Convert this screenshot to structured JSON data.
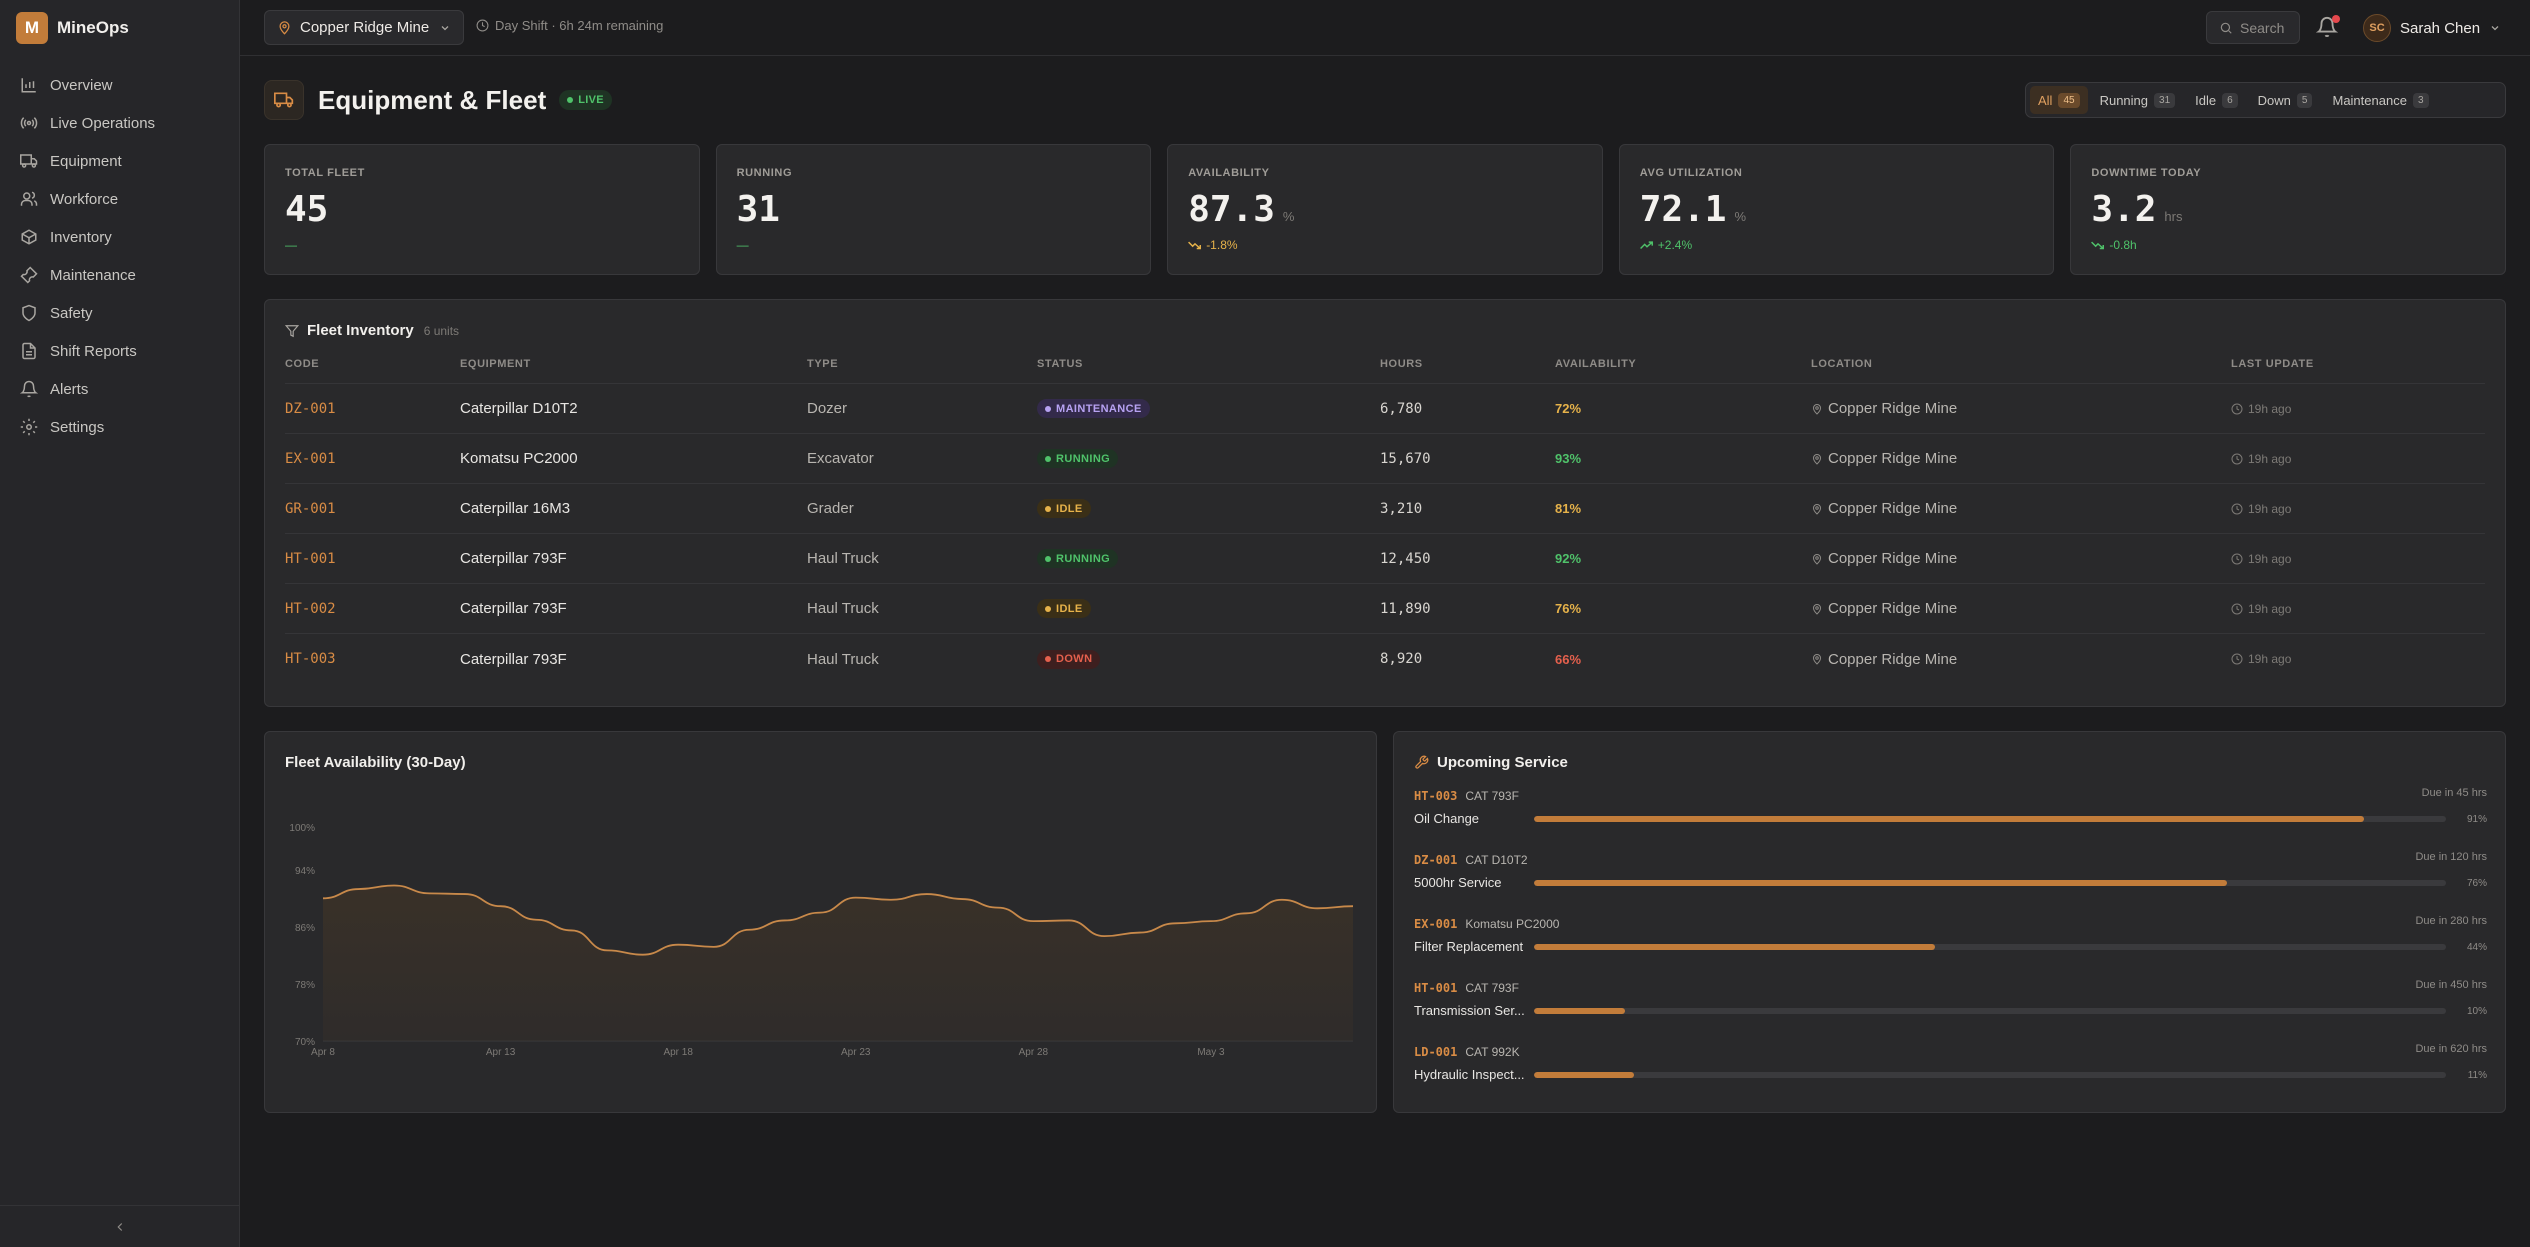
{
  "brand": {
    "logo": "M",
    "name": "MineOps"
  },
  "nav": [
    {
      "label": "Overview",
      "icon": "bar-chart-icon"
    },
    {
      "label": "Live Operations",
      "icon": "radio-icon"
    },
    {
      "label": "Equipment",
      "icon": "truck-icon"
    },
    {
      "label": "Workforce",
      "icon": "users-icon"
    },
    {
      "label": "Inventory",
      "icon": "box-icon"
    },
    {
      "label": "Maintenance",
      "icon": "wrench-icon"
    },
    {
      "label": "Safety",
      "icon": "shield-icon"
    },
    {
      "label": "Shift Reports",
      "icon": "file-text-icon"
    },
    {
      "label": "Alerts",
      "icon": "bell-icon"
    },
    {
      "label": "Settings",
      "icon": "gear-icon"
    }
  ],
  "topbar": {
    "site": "Copper Ridge Mine",
    "shift": "Day Shift · 6h 24m remaining",
    "search_placeholder": "Search",
    "user_initials": "SC",
    "user_name": "Sarah Chen"
  },
  "header": {
    "title": "Equipment & Fleet",
    "live": "LIVE"
  },
  "filters": [
    {
      "label": "All",
      "count": "45",
      "active": true
    },
    {
      "label": "Running",
      "count": "31"
    },
    {
      "label": "Idle",
      "count": "6"
    },
    {
      "label": "Down",
      "count": "5"
    },
    {
      "label": "Maintenance",
      "count": "3"
    }
  ],
  "kpis": [
    {
      "label": "TOTAL FLEET",
      "value": "45",
      "unit": "",
      "delta": "—",
      "tone": "neutral"
    },
    {
      "label": "RUNNING",
      "value": "31",
      "unit": "",
      "delta": "—",
      "tone": "neutral"
    },
    {
      "label": "AVAILABILITY",
      "value": "87.3",
      "unit": "%",
      "delta": "-1.8%",
      "tone": "warn"
    },
    {
      "label": "AVG UTILIZATION",
      "value": "72.1",
      "unit": "%",
      "delta": "+2.4%",
      "tone": "good"
    },
    {
      "label": "DOWNTIME TODAY",
      "value": "3.2",
      "unit": "hrs",
      "delta": "-0.8h",
      "tone": "good"
    }
  ],
  "inventory": {
    "title": "Fleet Inventory",
    "count": "6 units",
    "columns": [
      "CODE",
      "EQUIPMENT",
      "TYPE",
      "STATUS",
      "HOURS",
      "AVAILABILITY",
      "LOCATION",
      "LAST UPDATE"
    ],
    "rows": [
      {
        "code": "DZ-001",
        "equipment": "Caterpillar D10T2",
        "type": "Dozer",
        "status": "MAINTENANCE",
        "status_key": "maint",
        "hours": "6,780",
        "availability": "72%",
        "avail_tone": "warn",
        "location": "Copper Ridge Mine",
        "updated": "19h ago"
      },
      {
        "code": "EX-001",
        "equipment": "Komatsu PC2000",
        "type": "Excavator",
        "status": "RUNNING",
        "status_key": "run",
        "hours": "15,670",
        "availability": "93%",
        "avail_tone": "good",
        "location": "Copper Ridge Mine",
        "updated": "19h ago"
      },
      {
        "code": "GR-001",
        "equipment": "Caterpillar 16M3",
        "type": "Grader",
        "status": "IDLE",
        "status_key": "idle",
        "hours": "3,210",
        "availability": "81%",
        "avail_tone": "warn",
        "location": "Copper Ridge Mine",
        "updated": "19h ago"
      },
      {
        "code": "HT-001",
        "equipment": "Caterpillar 793F",
        "type": "Haul Truck",
        "status": "RUNNING",
        "status_key": "run",
        "hours": "12,450",
        "availability": "92%",
        "avail_tone": "good",
        "location": "Copper Ridge Mine",
        "updated": "19h ago"
      },
      {
        "code": "HT-002",
        "equipment": "Caterpillar 793F",
        "type": "Haul Truck",
        "status": "IDLE",
        "status_key": "idle",
        "hours": "11,890",
        "availability": "76%",
        "avail_tone": "warn",
        "location": "Copper Ridge Mine",
        "updated": "19h ago"
      },
      {
        "code": "HT-003",
        "equipment": "Caterpillar 793F",
        "type": "Haul Truck",
        "status": "DOWN",
        "status_key": "down",
        "hours": "8,920",
        "availability": "66%",
        "avail_tone": "bad",
        "location": "Copper Ridge Mine",
        "updated": "19h ago"
      }
    ]
  },
  "chart_data": {
    "type": "area",
    "title": "Fleet Availability (30-Day)",
    "ylim": [
      70,
      100
    ],
    "yticks": [
      "100%",
      "94%",
      "86%",
      "78%",
      "70%"
    ],
    "ytick_values": [
      100,
      94,
      86,
      78,
      70
    ],
    "xtick_labels": [
      "Apr 8",
      "Apr 13",
      "Apr 18",
      "Apr 23",
      "Apr 28",
      "May 3"
    ],
    "xtick_index": [
      0,
      5,
      10,
      15,
      20,
      25
    ],
    "x": [
      "Apr 8",
      "Apr 9",
      "Apr 10",
      "Apr 11",
      "Apr 12",
      "Apr 13",
      "Apr 14",
      "Apr 15",
      "Apr 16",
      "Apr 17",
      "Apr 18",
      "Apr 19",
      "Apr 20",
      "Apr 21",
      "Apr 22",
      "Apr 23",
      "Apr 24",
      "Apr 25",
      "Apr 26",
      "Apr 27",
      "Apr 28",
      "Apr 29",
      "Apr 30",
      "May 1",
      "May 2",
      "May 3",
      "May 4",
      "May 5",
      "May 6",
      "May 7"
    ],
    "values": [
      90.0,
      91.3,
      91.8,
      90.7,
      90.6,
      88.9,
      87.0,
      85.5,
      82.7,
      82.1,
      83.5,
      83.2,
      85.6,
      86.9,
      88.0,
      90.1,
      89.8,
      90.6,
      89.9,
      88.7,
      86.8,
      86.9,
      84.7,
      85.2,
      86.5,
      86.8,
      87.9,
      89.8,
      88.6,
      88.9
    ],
    "grid": false,
    "colors": {
      "line": "#c8894a",
      "fill": "#3a3128"
    }
  },
  "service": {
    "title": "Upcoming Service",
    "items": [
      {
        "code": "HT-003",
        "model": "CAT 793F",
        "task": "Oil Change",
        "due": "Due in 45 hrs",
        "pct": "91%",
        "progress": 0.91
      },
      {
        "code": "DZ-001",
        "model": "CAT D10T2",
        "task": "5000hr Service",
        "due": "Due in 120 hrs",
        "pct": "76%",
        "progress": 0.76
      },
      {
        "code": "EX-001",
        "model": "Komatsu PC2000",
        "task": "Filter Replacement",
        "due": "Due in 280 hrs",
        "pct": "44%",
        "progress": 0.44
      },
      {
        "code": "HT-001",
        "model": "CAT 793F",
        "task": "Transmission Ser...",
        "due": "Due in 450 hrs",
        "pct": "10%",
        "progress": 0.1
      },
      {
        "code": "LD-001",
        "model": "CAT 992K",
        "task": "Hydraulic Inspect...",
        "due": "Due in 620 hrs",
        "pct": "11%",
        "progress": 0.11
      }
    ]
  }
}
